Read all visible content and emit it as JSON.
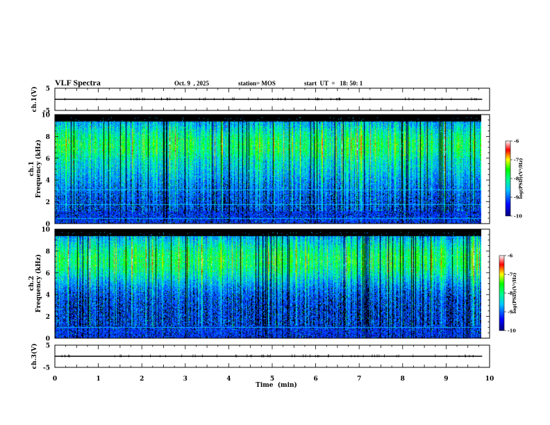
{
  "header": {
    "title": "VLF Spectra",
    "date": "Oct. 9  , 2025",
    "station": "station= MOS",
    "start": "start  UT  =   18: 50: 1"
  },
  "colors": {
    "background": "#000000",
    "colormap": [
      "#000000",
      "#0000ff",
      "#00aaff",
      "#00ffcc",
      "#00ff00",
      "#ffff00",
      "#ff0000",
      "#ffffff"
    ],
    "trace": "#000000"
  },
  "chart_data": [
    {
      "type": "line",
      "id": "ch1-voltage",
      "ylabel": "ch.1(V)",
      "ylim": [
        -5,
        5
      ],
      "yticks": [
        "5",
        "-5"
      ],
      "baseline": 0
    },
    {
      "type": "heatmap",
      "id": "ch1-spectrogram",
      "ylabel": "ch.1\nFrequency (kHz)",
      "ylabel_channel": "ch.1",
      "ylabel_text": "Frequency (kHz)",
      "ylim": [
        0,
        10
      ],
      "yticks": [
        "0",
        "2",
        "4",
        "6",
        "8",
        "10"
      ],
      "xlim": [
        0,
        10
      ],
      "colorbar": {
        "label": "log(PSD)(V²/Hz)",
        "range": [
          -10,
          -6
        ],
        "ticks": [
          "-6",
          "-7",
          "-8",
          "-9",
          "-10"
        ]
      },
      "narrowband_lines_khz": [
        0.5,
        1.8,
        3.1
      ]
    },
    {
      "type": "heatmap",
      "id": "ch2-spectrogram",
      "ylabel_channel": "ch.2",
      "ylabel_text": "Frequency (kHz)",
      "ylim": [
        0,
        10
      ],
      "yticks": [
        "0",
        "2",
        "4",
        "6",
        "8",
        "10"
      ],
      "xlim": [
        0,
        10
      ],
      "colorbar": {
        "label": "log(PSD)(V²/Hz)",
        "range": [
          -10,
          -6
        ],
        "ticks": [
          "-6",
          "-7",
          "-8",
          "-9",
          "-10"
        ]
      },
      "narrowband_lines_khz": [
        1.0
      ]
    },
    {
      "type": "line",
      "id": "ch3-voltage",
      "ylabel": "ch.3(V)",
      "ylim": [
        -5,
        5
      ],
      "yticks": [
        "5",
        "-5"
      ],
      "baseline": 0
    }
  ],
  "x_axis": {
    "label": "Time  (min)",
    "xlim": [
      0,
      10
    ],
    "ticks": [
      "0",
      "1",
      "2",
      "3",
      "4",
      "5",
      "6",
      "7",
      "8",
      "9",
      "10"
    ],
    "data_end_min": 9.83
  }
}
